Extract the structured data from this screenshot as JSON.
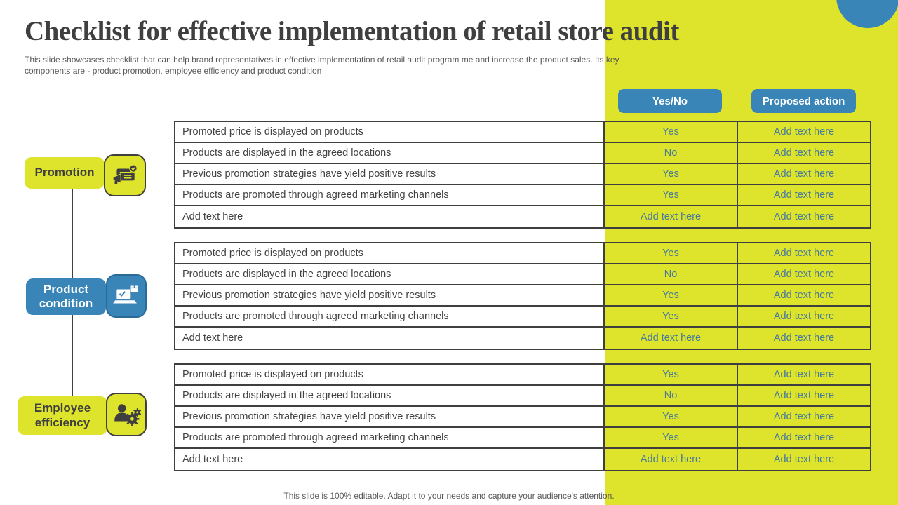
{
  "slide": {
    "title": "Checklist for effective implementation of retail store audit",
    "subtitle": "This slide showcases checklist that can help brand representatives in effective implementation of retail audit program me and increase the product sales. Its key components are - product promotion, employee efficiency and product condition",
    "footer": "This slide is 100% editable. Adapt it to your needs and capture your audience's attention."
  },
  "column_headers": {
    "yes_no": "Yes/No",
    "proposed_action": "Proposed action"
  },
  "sections": [
    {
      "label": "Promotion",
      "icon": "megaphone-board-icon",
      "theme": "yellow",
      "rows": [
        {
          "item": "Promoted price is displayed on products",
          "answer": "Yes",
          "action": "Add text here"
        },
        {
          "item": "Products are displayed in the agreed locations",
          "answer": "No",
          "action": "Add text here"
        },
        {
          "item": "Previous promotion strategies have yield positive results",
          "answer": "Yes",
          "action": "Add text here"
        },
        {
          "item": "Products are promoted through agreed marketing channels",
          "answer": "Yes",
          "action": "Add text here"
        },
        {
          "item": "Add text here",
          "answer": "Add text here",
          "action": "Add text here"
        }
      ]
    },
    {
      "label": "Product condition",
      "icon": "laptop-check-box-icon",
      "theme": "blue",
      "rows": [
        {
          "item": "Promoted price is displayed on products",
          "answer": "Yes",
          "action": "Add text here"
        },
        {
          "item": "Products are displayed in the agreed locations",
          "answer": "No",
          "action": "Add text here"
        },
        {
          "item": "Previous promotion strategies have yield positive results",
          "answer": "Yes",
          "action": "Add text here"
        },
        {
          "item": "Products are promoted through agreed marketing channels",
          "answer": "Yes",
          "action": "Add text here"
        },
        {
          "item": "Add text here",
          "answer": "Add text here",
          "action": "Add text here"
        }
      ]
    },
    {
      "label": "Employee efficiency",
      "icon": "person-gears-icon",
      "theme": "yellow",
      "rows": [
        {
          "item": "Promoted price is displayed on products",
          "answer": "Yes",
          "action": "Add text here"
        },
        {
          "item": "Products are displayed in the agreed locations",
          "answer": "No",
          "action": "Add text here"
        },
        {
          "item": "Previous promotion strategies have yield positive results",
          "answer": "Yes",
          "action": "Add text here"
        },
        {
          "item": "Products are promoted through agreed marketing channels",
          "answer": "Yes",
          "action": "Add text here"
        },
        {
          "item": "Add text here",
          "answer": "Add text here",
          "action": "Add text here"
        }
      ]
    }
  ],
  "colors": {
    "yellow": "#dee32b",
    "blue": "#3a85b8",
    "dark": "#3f3f3f",
    "muted": "#595959",
    "cell_text": "#45799f"
  }
}
